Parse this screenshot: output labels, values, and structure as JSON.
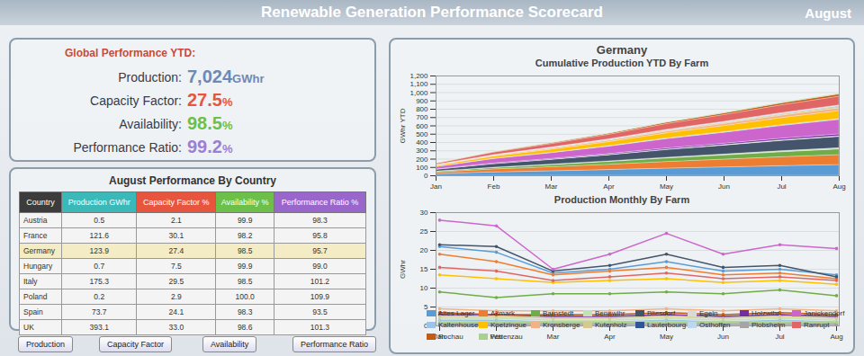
{
  "header": {
    "title": "Renewable Generation Performance Scorecard",
    "period": "August"
  },
  "kpis": {
    "title": "Global Performance YTD:",
    "items": [
      {
        "label": "Production:",
        "value": "7,024",
        "unit": "GWhr",
        "color": "#7088b4"
      },
      {
        "label": "Capacity Factor:",
        "value": "27.5",
        "unit": "%",
        "color": "#e8553f"
      },
      {
        "label": "Availability:",
        "value": "98.5",
        "unit": "%",
        "color": "#6cc04a"
      },
      {
        "label": "Performance Ratio:",
        "value": "99.2",
        "unit": "%",
        "color": "#9b7fd4"
      }
    ]
  },
  "table": {
    "title": "August Performance By Country",
    "columns": [
      {
        "label": "Country",
        "color": "#3c3c3c"
      },
      {
        "label": "Production GWhr",
        "color": "#3bb8b8"
      },
      {
        "label": "Capacity Factor %",
        "color": "#e8553f"
      },
      {
        "label": "Availability %",
        "color": "#6cc04a"
      },
      {
        "label": "Performance Ratio %",
        "color": "#9966cc"
      }
    ],
    "rows": [
      [
        "Austria",
        "0.5",
        "2.1",
        "99.9",
        "98.3"
      ],
      [
        "France",
        "121.6",
        "30.1",
        "98.2",
        "95.8"
      ],
      [
        "Germany",
        "123.9",
        "27.4",
        "98.5",
        "95.7"
      ],
      [
        "Hungary",
        "0.7",
        "7.5",
        "99.9",
        "99.0"
      ],
      [
        "Italy",
        "175.3",
        "29.5",
        "98.5",
        "101.2"
      ],
      [
        "Poland",
        "0.2",
        "2.9",
        "100.0",
        "109.9"
      ],
      [
        "Spain",
        "73.7",
        "24.1",
        "98.3",
        "93.5"
      ],
      [
        "UK",
        "393.1",
        "33.0",
        "98.6",
        "101.3"
      ]
    ]
  },
  "buttons": [
    "Production",
    "Capacity Factor",
    "Availability",
    "Performance Ratio"
  ],
  "country": "Germany",
  "chart_data": [
    {
      "type": "area",
      "title": "Cumulative Production YTD By Farm",
      "y_label": "GWhr YTD",
      "stacked": true,
      "grid": true,
      "categories": [
        "Jan",
        "Feb",
        "Mar",
        "Apr",
        "May",
        "Jun",
        "Jul",
        "Aug"
      ],
      "ylim": [
        0,
        1200
      ],
      "yticks": [
        0,
        100,
        200,
        300,
        400,
        500,
        600,
        700,
        800,
        900,
        {
          "value": 1000,
          "label": "1,000"
        },
        {
          "value": 1100,
          "label": "1,100"
        },
        {
          "value": 1200,
          "label": "1,200"
        }
      ],
      "series": [
        {
          "name": "Altes Lager",
          "color": "#5b9bd5",
          "values": [
            21,
            40.5,
            54.5,
            69.5,
            86.5,
            101,
            116,
            129.5
          ]
        },
        {
          "name": "Altmark",
          "color": "#ed7d31",
          "values": [
            19,
            36,
            49.5,
            64,
            79.5,
            93,
            107,
            119.5
          ]
        },
        {
          "name": "Barnstedt",
          "color": "#70ad47",
          "values": [
            9,
            16.5,
            25,
            33.5,
            42.5,
            51,
            60.5,
            68.5
          ]
        },
        {
          "name": "Bennwihr",
          "color": "#c5e0b4",
          "values": [
            2,
            4,
            5.5,
            7,
            9,
            10.5,
            12.5,
            14
          ]
        },
        {
          "name": "Bliesdorf",
          "color": "#44546a",
          "values": [
            21.5,
            42.5,
            57,
            73,
            92,
            107.5,
            123.5,
            136.5
          ]
        },
        {
          "name": "Egeln",
          "color": "#d9d9d9",
          "values": [
            1,
            2,
            3,
            4,
            5,
            6,
            7,
            8
          ]
        },
        {
          "name": "Holzwihr",
          "color": "#7030a0",
          "values": [
            3,
            6,
            8.5,
            11,
            14,
            16.5,
            19.5,
            22
          ]
        },
        {
          "name": "Janickendorf",
          "color": "#cc66cc",
          "values": [
            28,
            54.5,
            69.5,
            88.5,
            113,
            132,
            153.5,
            174
          ]
        },
        {
          "name": "Kaltenhouse",
          "color": "#9dc3e6",
          "values": [
            1.5,
            3,
            4,
            5,
            6.5,
            7.5,
            9,
            10
          ]
        },
        {
          "name": "Koetzingue",
          "color": "#ffc000",
          "values": [
            13.5,
            26,
            37.5,
            49.5,
            62,
            73.5,
            85.5,
            96.5
          ]
        },
        {
          "name": "Kronsberge",
          "color": "#f4b183",
          "values": [
            4.5,
            8.5,
            12.5,
            16.5,
            21,
            25,
            29.5,
            33.5
          ]
        },
        {
          "name": "Kutenholz",
          "color": "#d6c98f",
          "values": [
            2.5,
            5,
            7,
            9,
            11.5,
            13.5,
            16,
            18
          ]
        },
        {
          "name": "Lauterbourg",
          "color": "#2f5597",
          "values": [
            0.5,
            1,
            1.5,
            2,
            2.5,
            3,
            3.5,
            4
          ]
        },
        {
          "name": "Osthoffen",
          "color": "#bdd7ee",
          "values": [
            1,
            2,
            3,
            4,
            5,
            6,
            7,
            8
          ]
        },
        {
          "name": "Plobsheim",
          "color": "#a5a5a5",
          "values": [
            0.5,
            1,
            1.5,
            2,
            2.5,
            3,
            3.5,
            4
          ]
        },
        {
          "name": "Ranrupt",
          "color": "#e06666",
          "values": [
            15.5,
            30,
            42,
            55,
            69,
            81.5,
            94.5,
            106.5
          ]
        },
        {
          "name": "Rochau",
          "color": "#c55a11",
          "values": [
            3.5,
            6.5,
            9.5,
            12.5,
            16,
            19,
            22.5,
            25.5
          ]
        },
        {
          "name": "Watenzau",
          "color": "#a9d18e",
          "values": [
            1,
            2,
            3,
            4,
            5,
            6,
            7,
            8
          ]
        }
      ]
    },
    {
      "type": "line",
      "title": "Production Monthly By Farm",
      "y_label": "GWhr",
      "grid": true,
      "marker": "circle",
      "legend": "bottom",
      "categories": [
        "Jan",
        "Feb",
        "Mar",
        "Apr",
        "May",
        "Jun",
        "Jul",
        "Aug"
      ],
      "ylim": [
        0,
        30
      ],
      "yticks": [
        0,
        5,
        10,
        15,
        20,
        25,
        30
      ],
      "series": [
        {
          "name": "Altes Lager",
          "color": "#5b9bd5",
          "values": [
            21,
            19.5,
            14,
            15,
            17,
            14.5,
            15,
            13.5
          ]
        },
        {
          "name": "Altmark",
          "color": "#ed7d31",
          "values": [
            19,
            17,
            13.5,
            14.5,
            15.5,
            13.5,
            14,
            12.5
          ]
        },
        {
          "name": "Barnstedt",
          "color": "#70ad47",
          "values": [
            9,
            7.5,
            8.5,
            8.5,
            9,
            8.5,
            9.5,
            8
          ]
        },
        {
          "name": "Bennwihr",
          "color": "#c5e0b4",
          "values": [
            2,
            2,
            1.5,
            1.5,
            2,
            1.5,
            2,
            1.5
          ]
        },
        {
          "name": "Bliesdorf",
          "color": "#44546a",
          "values": [
            21.5,
            21,
            14.5,
            16,
            19,
            15.5,
            16,
            13
          ]
        },
        {
          "name": "Egeln",
          "color": "#d9d9d9",
          "values": [
            1,
            1,
            1,
            1,
            1,
            1,
            1,
            1
          ]
        },
        {
          "name": "Holzwihr",
          "color": "#7030a0",
          "values": [
            3,
            3,
            2.5,
            2.5,
            3,
            2.5,
            3,
            2.5
          ]
        },
        {
          "name": "Janickendorf",
          "color": "#cc66cc",
          "values": [
            28,
            26.5,
            15,
            19,
            24.5,
            19,
            21.5,
            20.5
          ]
        },
        {
          "name": "Kaltenhouse",
          "color": "#9dc3e6",
          "values": [
            1.5,
            1.5,
            1,
            1,
            1.5,
            1,
            1.5,
            1
          ]
        },
        {
          "name": "Koetzingue",
          "color": "#ffc000",
          "values": [
            13.5,
            12.5,
            11.5,
            12,
            12.5,
            11.5,
            12,
            11
          ]
        },
        {
          "name": "Kronsberge",
          "color": "#f4b183",
          "values": [
            4.5,
            4,
            4,
            4,
            4.5,
            4,
            4.5,
            4
          ]
        },
        {
          "name": "Kutenholz",
          "color": "#d6c98f",
          "values": [
            2.5,
            2.5,
            2,
            2,
            2.5,
            2,
            2.5,
            2
          ]
        },
        {
          "name": "Lauterbourg",
          "color": "#2f5597",
          "values": [
            0.5,
            0.5,
            0.5,
            0.5,
            0.5,
            0.5,
            0.5,
            0.5
          ]
        },
        {
          "name": "Osthoffen",
          "color": "#bdd7ee",
          "values": [
            1,
            1,
            1,
            1,
            1,
            1,
            1,
            1
          ]
        },
        {
          "name": "Plobsheim",
          "color": "#a5a5a5",
          "values": [
            0.5,
            0.5,
            0.5,
            0.5,
            0.5,
            0.5,
            0.5,
            0.5
          ]
        },
        {
          "name": "Ranrupt",
          "color": "#e06666",
          "values": [
            15.5,
            14.5,
            12,
            13,
            14,
            12.5,
            13,
            12
          ]
        },
        {
          "name": "Rochau",
          "color": "#c55a11",
          "values": [
            3.5,
            3,
            3,
            3,
            3.5,
            3,
            3.5,
            3
          ]
        },
        {
          "name": "Watenzau",
          "color": "#a9d18e",
          "values": [
            1,
            1,
            1,
            1,
            1,
            1,
            1,
            1
          ]
        }
      ]
    }
  ]
}
